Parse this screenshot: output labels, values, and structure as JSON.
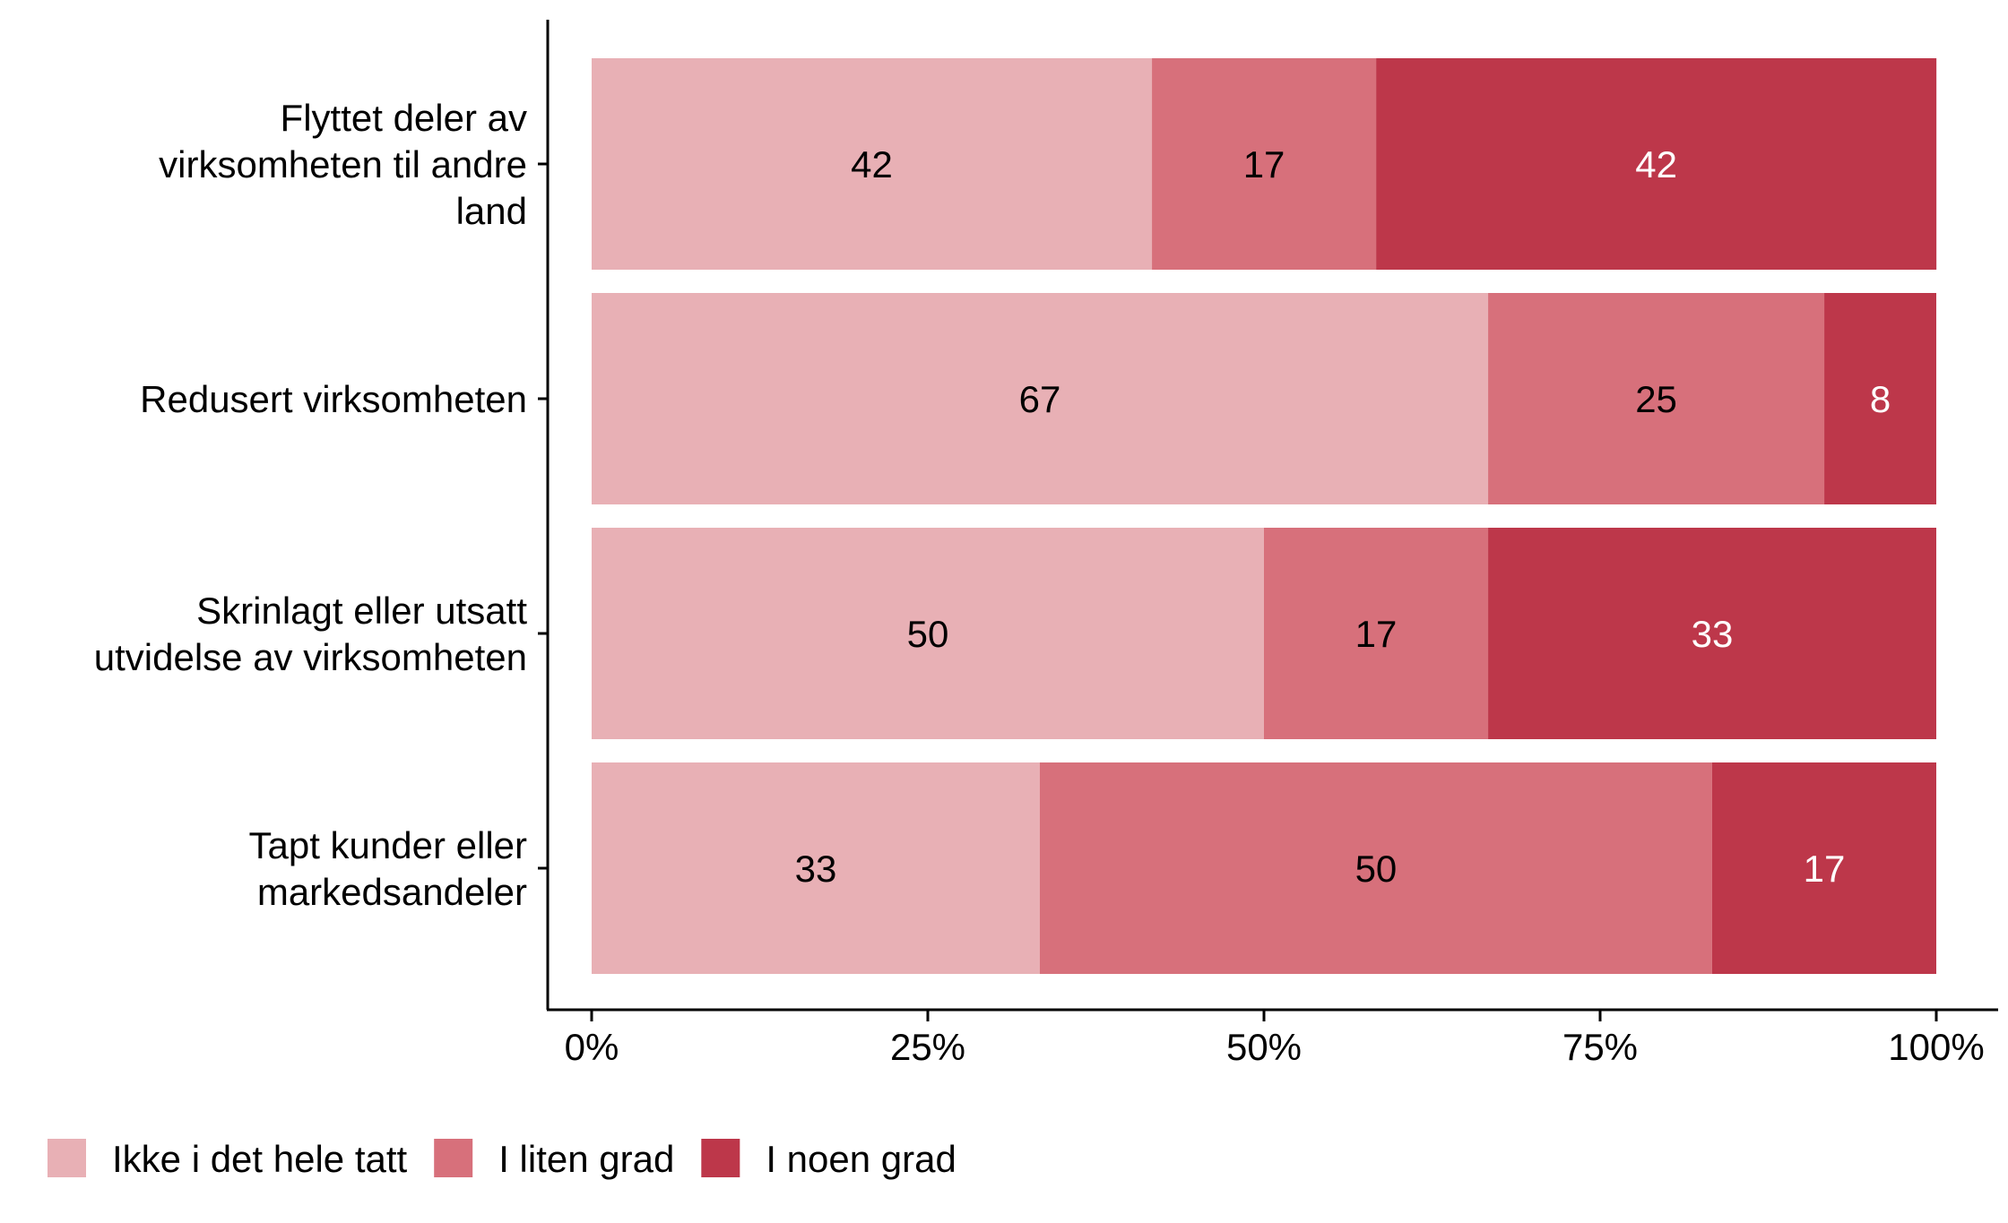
{
  "chart_data": {
    "type": "bar",
    "orientation": "horizontal",
    "stacked": true,
    "title": "",
    "xlabel": "",
    "ylabel": "",
    "xlim": [
      0,
      100
    ],
    "x_ticks": [
      "0%",
      "25%",
      "50%",
      "75%",
      "100%"
    ],
    "x_tick_values": [
      0,
      25,
      50,
      75,
      100
    ],
    "categories": [
      [
        "Flyttet deler av",
        "virksomheten til andre",
        "land"
      ],
      [
        "Redusert virksomheten"
      ],
      [
        "Skrinlagt eller utsatt",
        "utvidelse av virksomheten"
      ],
      [
        "Tapt kunder eller",
        "markedsandeler"
      ]
    ],
    "series": [
      {
        "name": "Ikke i det hele tatt",
        "color": "#E8B0B5",
        "label_color": "#000000",
        "values": [
          41.67,
          66.67,
          50,
          33.33
        ],
        "labels": [
          "42",
          "67",
          "50",
          "33"
        ]
      },
      {
        "name": "I liten grad",
        "color": "#D7707B",
        "label_color": "#000000",
        "values": [
          16.67,
          25,
          16.67,
          50
        ],
        "labels": [
          "17",
          "25",
          "17",
          "50"
        ]
      },
      {
        "name": "I noen grad",
        "color": "#BD374A",
        "label_color": "#FFFFFF",
        "values": [
          41.67,
          8.33,
          33.33,
          16.67
        ],
        "labels": [
          "42",
          "8",
          "33",
          "17"
        ]
      }
    ],
    "legend": {
      "placement": "bottom-left"
    },
    "grid": false
  }
}
